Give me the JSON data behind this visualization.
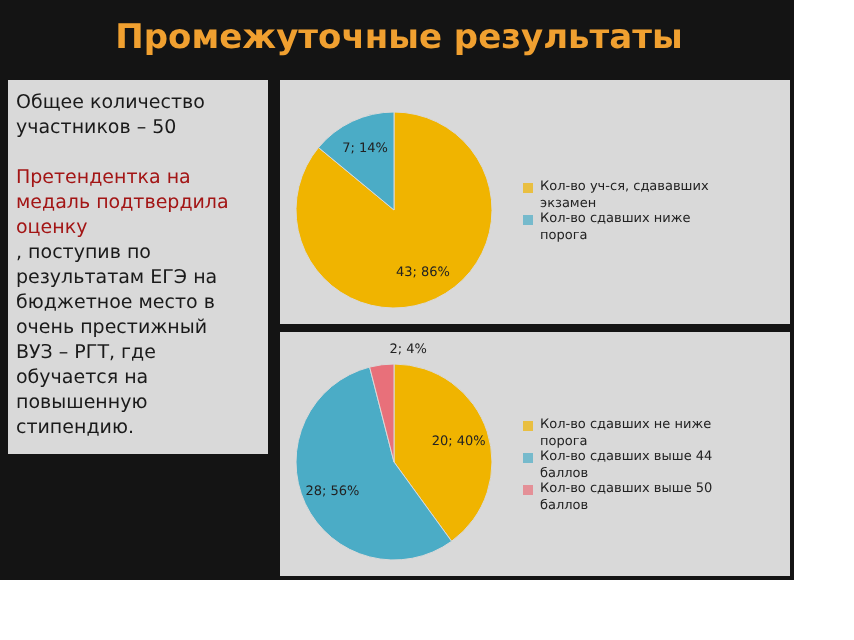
{
  "chart_data": [
    {
      "type": "other",
      "title": "Промежуточные результаты",
      "annotations": [
        "Общее количество участников – 50",
        "Претендентка на медаль подтвердила оценку",
        ", поступив по результатам ЕГЭ на бюджетное место в очень престижный ВУЗ – РГТ, где обучается на повышенную стипендию."
      ],
      "colors": [
        "#1a1a1a",
        "#a31515",
        "#1a1a1a"
      ]
    },
    {
      "type": "pie",
      "categories": [
        "Кол-во уч-ся, сдававших экзамен",
        "Кол-во сдавших ниже порога"
      ],
      "values": [
        43,
        7
      ],
      "value_labels": [
        "43; 86%",
        "7; 14%"
      ],
      "colors": [
        "#f0b400",
        "#4bacc6"
      ],
      "legend": "right"
    },
    {
      "type": "pie",
      "categories": [
        "Кол-во сдавших не ниже порога",
        "Кол-во сдавших выше 44 баллов",
        "Кол-во сдавших выше 50 баллов"
      ],
      "values": [
        20,
        28,
        2
      ],
      "value_labels": [
        "20; 40%",
        "28; 56%",
        "2; 4%"
      ],
      "colors": [
        "#f0b400",
        "#4bacc6",
        "#e8707a"
      ],
      "legend": "right"
    }
  ]
}
